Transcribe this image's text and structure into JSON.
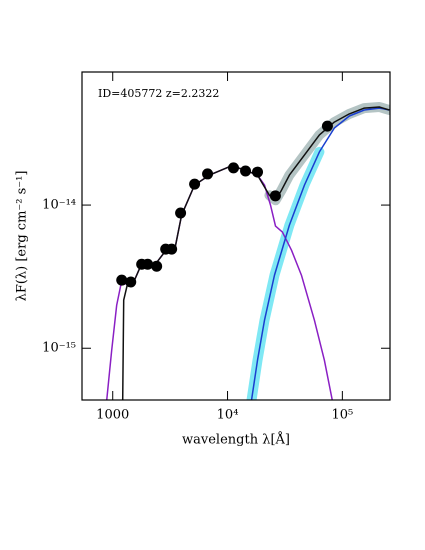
{
  "chart_data": {
    "type": "line",
    "annotation": "ID=405772 z=2.2322",
    "xlabel": "wavelength λ[Å]",
    "ylabel": "λF(λ) [erg cm⁻² s⁻¹]",
    "xscale": "log",
    "yscale": "log",
    "xlim": [
      540,
      260000
    ],
    "ylim": [
      4.35e-16,
      8.5e-14
    ],
    "xticks": [
      1000,
      {
        "value": 10000,
        "label": "10⁴"
      },
      {
        "value": 100000,
        "label": "10⁵"
      }
    ],
    "yticks": [
      {
        "value": 1e-15,
        "label": "10⁻¹⁵"
      },
      {
        "value": 1e-14,
        "label": "10⁻¹⁴"
      }
    ],
    "series": [
      {
        "style": "band",
        "color": "#b4c4c4",
        "x": [
          23170,
          26140,
          29510,
          34570,
          46780,
          63100,
          85110,
          115000,
          155200,
          209800,
          256300
        ],
        "values": [
          1.17e-14,
          1.08e-14,
          1.27e-14,
          1.62e-14,
          2.24e-14,
          3.09e-14,
          3.8e-14,
          4.33e-14,
          4.76e-14,
          4.84e-14,
          4.61e-14
        ]
      },
      {
        "style": "band",
        "color": "#7fe8f4",
        "x": [
          16180,
          18240,
          20990,
          25640,
          34570,
          46780,
          63100
        ],
        "values": [
          4.33e-16,
          8.24e-16,
          1.57e-15,
          3.24e-15,
          7.25e-15,
          1.38e-14,
          2.35e-14
        ]
      },
      {
        "style": "line",
        "color": "#8a1fc4",
        "x": [
          887,
          980,
          1083,
          1175,
          1350,
          1523,
          1718,
          2318,
          2830,
          3457,
          3980,
          5165,
          6970,
          10840,
          14060,
          18240,
          20990,
          23660,
          26140,
          30060,
          36030,
          43990,
          57100,
          69700,
          81800
        ],
        "values": [
          4.33e-16,
          9.69e-16,
          2e-15,
          2.76e-15,
          2.85e-15,
          2.9e-15,
          3.62e-15,
          3.8e-15,
          4.69e-15,
          4.84e-15,
          8.51e-15,
          1.38e-14,
          1.62e-14,
          1.88e-14,
          1.76e-14,
          1.62e-14,
          1.38e-14,
          1e-14,
          7.13e-15,
          6.47e-15,
          4.84e-15,
          3.24e-15,
          1.57e-15,
          8.24e-16,
          4.33e-16
        ]
      },
      {
        "style": "line",
        "color": "#1a3fd0",
        "x": [
          16180,
          18240,
          20990,
          25640,
          34570,
          46780,
          63100,
          85110,
          115000,
          155200,
          209800,
          256300
        ],
        "values": [
          4.33e-16,
          8.24e-16,
          1.57e-15,
          3.24e-15,
          7.25e-15,
          1.38e-14,
          2.35e-14,
          3.45e-14,
          4.19e-14,
          4.61e-14,
          4.76e-14,
          4.61e-14
        ]
      },
      {
        "style": "line",
        "color": "#111111",
        "x": [
          1222,
          1246,
          1350,
          1523,
          1718,
          2318,
          2830,
          3457,
          3980,
          5165,
          6970,
          10840,
          14060,
          18240,
          23170,
          26140,
          29510,
          34570,
          46780,
          63100,
          85110,
          115000,
          155200,
          209800,
          256300
        ],
        "values": [
          4.33e-16,
          2.17e-15,
          2.85e-15,
          2.9e-15,
          3.62e-15,
          3.8e-15,
          4.69e-15,
          4.84e-15,
          8.51e-15,
          1.38e-14,
          1.62e-14,
          1.88e-14,
          1.76e-14,
          1.62e-14,
          1.17e-14,
          1.08e-14,
          1.27e-14,
          1.62e-14,
          2.24e-14,
          3.09e-14,
          3.8e-14,
          4.33e-14,
          4.76e-14,
          4.84e-14,
          4.61e-14
        ]
      },
      {
        "style": "markers",
        "color": "#000000",
        "x": [
          1198,
          1435,
          1787,
          2014,
          2414,
          2893,
          3260,
          3900,
          5165,
          6700,
          11270,
          14350,
          18240,
          26100,
          74100
        ],
        "values": [
          2.99e-15,
          2.9e-15,
          3.86e-15,
          3.86e-15,
          3.74e-15,
          4.92e-15,
          4.92e-15,
          8.8e-15,
          1.4e-14,
          1.65e-14,
          1.82e-14,
          1.73e-14,
          1.7e-14,
          1.16e-14,
          3.56e-14
        ]
      }
    ]
  }
}
